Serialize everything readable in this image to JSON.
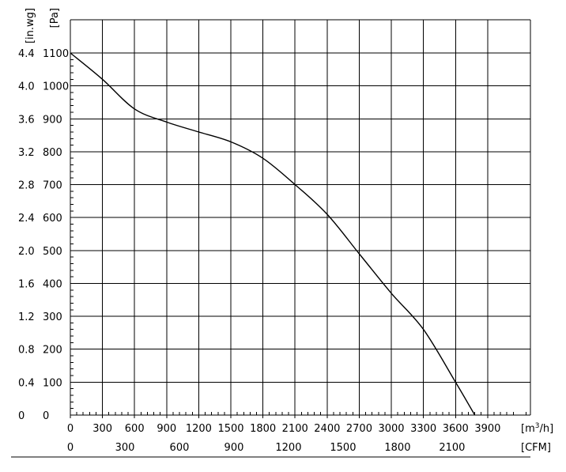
{
  "chart_data": {
    "type": "line",
    "title": "",
    "x_unit_primary": "[m³/h]",
    "x_unit_primary_base": "[m",
    "x_unit_primary_sup": "3",
    "x_unit_primary_tail": "/h]",
    "x_unit_secondary": "[CFM]",
    "y_unit_left": "[in.wg]",
    "y_unit_right": "[Pa]",
    "xlim": [
      0,
      4300
    ],
    "ylim": [
      0,
      1100
    ],
    "grid": true,
    "x_ticks_m3h": [
      "0",
      "300",
      "600",
      "900",
      "1200",
      "1500",
      "1800",
      "2100",
      "2400",
      "2700",
      "3000",
      "3300",
      "3600",
      "3900"
    ],
    "x_ticks_cfm": [
      "0",
      "300",
      "600",
      "900",
      "1200",
      "1500",
      "1800",
      "2100"
    ],
    "y_ticks_pa": [
      "0",
      "100",
      "200",
      "300",
      "400",
      "500",
      "600",
      "700",
      "800",
      "900",
      "1000",
      "1100"
    ],
    "y_ticks_inwg": [
      "0",
      "0.4",
      "0.8",
      "1.2",
      "1.6",
      "2.0",
      "2.4",
      "2.8",
      "3.2",
      "3.6",
      "4.0",
      "4.4"
    ],
    "series": [
      {
        "x": [
          0,
          300,
          600,
          900,
          1200,
          1500,
          1800,
          2100,
          2400,
          2700,
          3000,
          3300,
          3600,
          3780
        ],
        "y": [
          1100,
          1020,
          930,
          890,
          860,
          830,
          780,
          700,
          610,
          490,
          370,
          260,
          100,
          0
        ]
      }
    ]
  }
}
